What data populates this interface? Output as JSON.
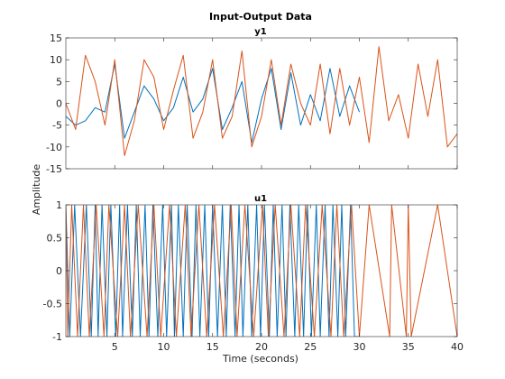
{
  "chart_data": {
    "title": "Input-Output Data",
    "shared_ylabel": "Amplitude",
    "xlabel": "Time (seconds)",
    "x_ticks": [
      5,
      10,
      15,
      20,
      25,
      30,
      35,
      40
    ],
    "xlim": [
      0,
      40
    ],
    "colors": {
      "series1": "#0072BD",
      "series2": "#D95319",
      "axes": "#262626"
    },
    "axes": [
      {
        "type": "line",
        "title": "y1",
        "ylim": [
          -15,
          15
        ],
        "y_ticks": [
          15,
          10,
          5,
          0,
          -5,
          -10,
          -15
        ],
        "series": [
          {
            "color": "#0072BD",
            "x": [
              0.0,
              1.0,
              2.0,
              3.0,
              4.0,
              5.0,
              6.0,
              7.0,
              8.0,
              9.0,
              10.0,
              11.0,
              12.0,
              13.0,
              14.0,
              15.0,
              16.0,
              17.0,
              18.0,
              19.0,
              20.0,
              21.0,
              22.0,
              23.0,
              24.0,
              25.0,
              26.0,
              27.0,
              28.0,
              29.0,
              30.0
            ],
            "y": [
              -3,
              -5,
              -4,
              -1,
              -2,
              9,
              -8,
              -2,
              4,
              1,
              -4,
              -1,
              6,
              -2,
              1,
              8,
              -6,
              -1,
              5,
              -9,
              1,
              8,
              -6,
              7,
              -5,
              2,
              -4,
              8,
              -3,
              4,
              -2
            ]
          },
          {
            "color": "#D95319",
            "x": [
              0.0,
              1.0,
              2.0,
              3.0,
              4.0,
              5.0,
              6.0,
              7.0,
              8.0,
              9.0,
              10.0,
              11.0,
              12.0,
              13.0,
              14.0,
              15.0,
              16.0,
              17.0,
              18.0,
              19.0,
              20.0,
              21.0,
              22.0,
              23.0,
              24.0,
              25.0,
              26.0,
              27.0,
              28.0,
              29.0,
              30.0,
              31.0,
              32.0,
              33.0,
              34.0,
              35.0,
              36.0,
              37.0,
              38.0,
              39.0,
              40.0
            ],
            "y": [
              0,
              -6,
              11,
              5,
              -5,
              10,
              -12,
              -4,
              10,
              6,
              -6,
              3,
              11,
              -8,
              -2,
              10,
              -8,
              -3,
              12,
              -10,
              -3,
              10,
              -5,
              9,
              0,
              -5,
              9,
              -7,
              8,
              -5,
              6,
              -9,
              13,
              -4,
              2,
              -8,
              9,
              -3,
              10,
              -10,
              -7
            ]
          }
        ]
      },
      {
        "type": "line",
        "title": "u1",
        "ylim": [
          -1,
          1
        ],
        "y_ticks": [
          1,
          0.5,
          0,
          -0.5,
          -1
        ],
        "y_tick_labels": [
          "1",
          "0.5",
          "0",
          "-0.5",
          "-1"
        ],
        "series": [
          {
            "color": "#0072BD",
            "x": [
              0.0,
              0.4,
              0.9,
              1.5,
              2.1,
              2.6,
              3.0,
              3.3,
              3.7,
              4.2,
              4.6,
              5.1,
              5.5,
              5.8,
              6.3,
              6.8,
              7.2,
              7.6,
              8.1,
              8.5,
              8.9,
              9.4,
              9.9,
              10.3,
              10.8,
              11.1,
              11.5,
              12.0,
              12.4,
              12.9,
              13.3,
              13.7,
              14.2,
              14.6,
              15.0,
              15.5,
              16.0,
              16.4,
              16.8,
              17.3,
              17.7,
              18.1,
              18.6,
              19.0,
              19.5,
              19.9,
              20.3,
              20.8,
              21.2,
              21.6,
              22.1,
              22.5,
              22.9,
              23.4,
              23.8,
              24.3,
              24.7,
              25.1,
              25.6,
              26.0,
              26.5,
              26.9,
              27.3,
              27.8,
              28.2,
              28.6,
              29.1,
              29.5,
              30.0
            ],
            "y": [
              1,
              -1,
              1,
              -1,
              1,
              -1,
              1,
              -1,
              1,
              -1,
              1,
              -1,
              1,
              -1,
              1,
              -1,
              1,
              -1,
              1,
              -1,
              1,
              -1,
              1,
              -1,
              1,
              -1,
              1,
              -1,
              1,
              -1,
              1,
              -1,
              1,
              -1,
              1,
              -1,
              1,
              -1,
              1,
              -1,
              1,
              -1,
              1,
              -1,
              1,
              -1,
              1,
              -1,
              1,
              -1,
              1,
              -1,
              1,
              -1,
              1,
              -1,
              1,
              -1,
              1,
              -1,
              1,
              -1,
              1,
              -1,
              1,
              -1,
              1,
              -1,
              -1
            ]
          },
          {
            "color": "#D95319",
            "x": [
              0.0,
              0.2,
              0.6,
              1.2,
              1.8,
              2.4,
              3.1,
              3.9,
              4.4,
              5.3,
              6.0,
              6.6,
              7.4,
              8.3,
              9.0,
              9.7,
              10.6,
              11.3,
              12.2,
              12.8,
              13.6,
              14.4,
              15.2,
              16.1,
              16.9,
              17.5,
              18.3,
              19.2,
              20.1,
              20.7,
              21.4,
              22.3,
              23.0,
              23.9,
              24.5,
              25.4,
              26.2,
              27.1,
              27.7,
              28.4,
              29.2,
              30.0,
              31.0,
              33.1,
              33.3,
              34.8,
              35.0,
              35.3,
              38.0,
              40.0
            ],
            "y": [
              1,
              -1,
              1,
              -1,
              1,
              -1,
              1,
              -1,
              1,
              -1,
              1,
              -1,
              1,
              -1,
              1,
              -1,
              1,
              -1,
              1,
              -1,
              1,
              -1,
              1,
              -1,
              1,
              -1,
              1,
              -1,
              1,
              -1,
              1,
              -1,
              1,
              -1,
              1,
              -1,
              1,
              -1,
              1,
              -1,
              1,
              -1,
              1,
              -1,
              1,
              -1,
              1,
              -1,
              1,
              -1
            ]
          }
        ]
      }
    ]
  }
}
